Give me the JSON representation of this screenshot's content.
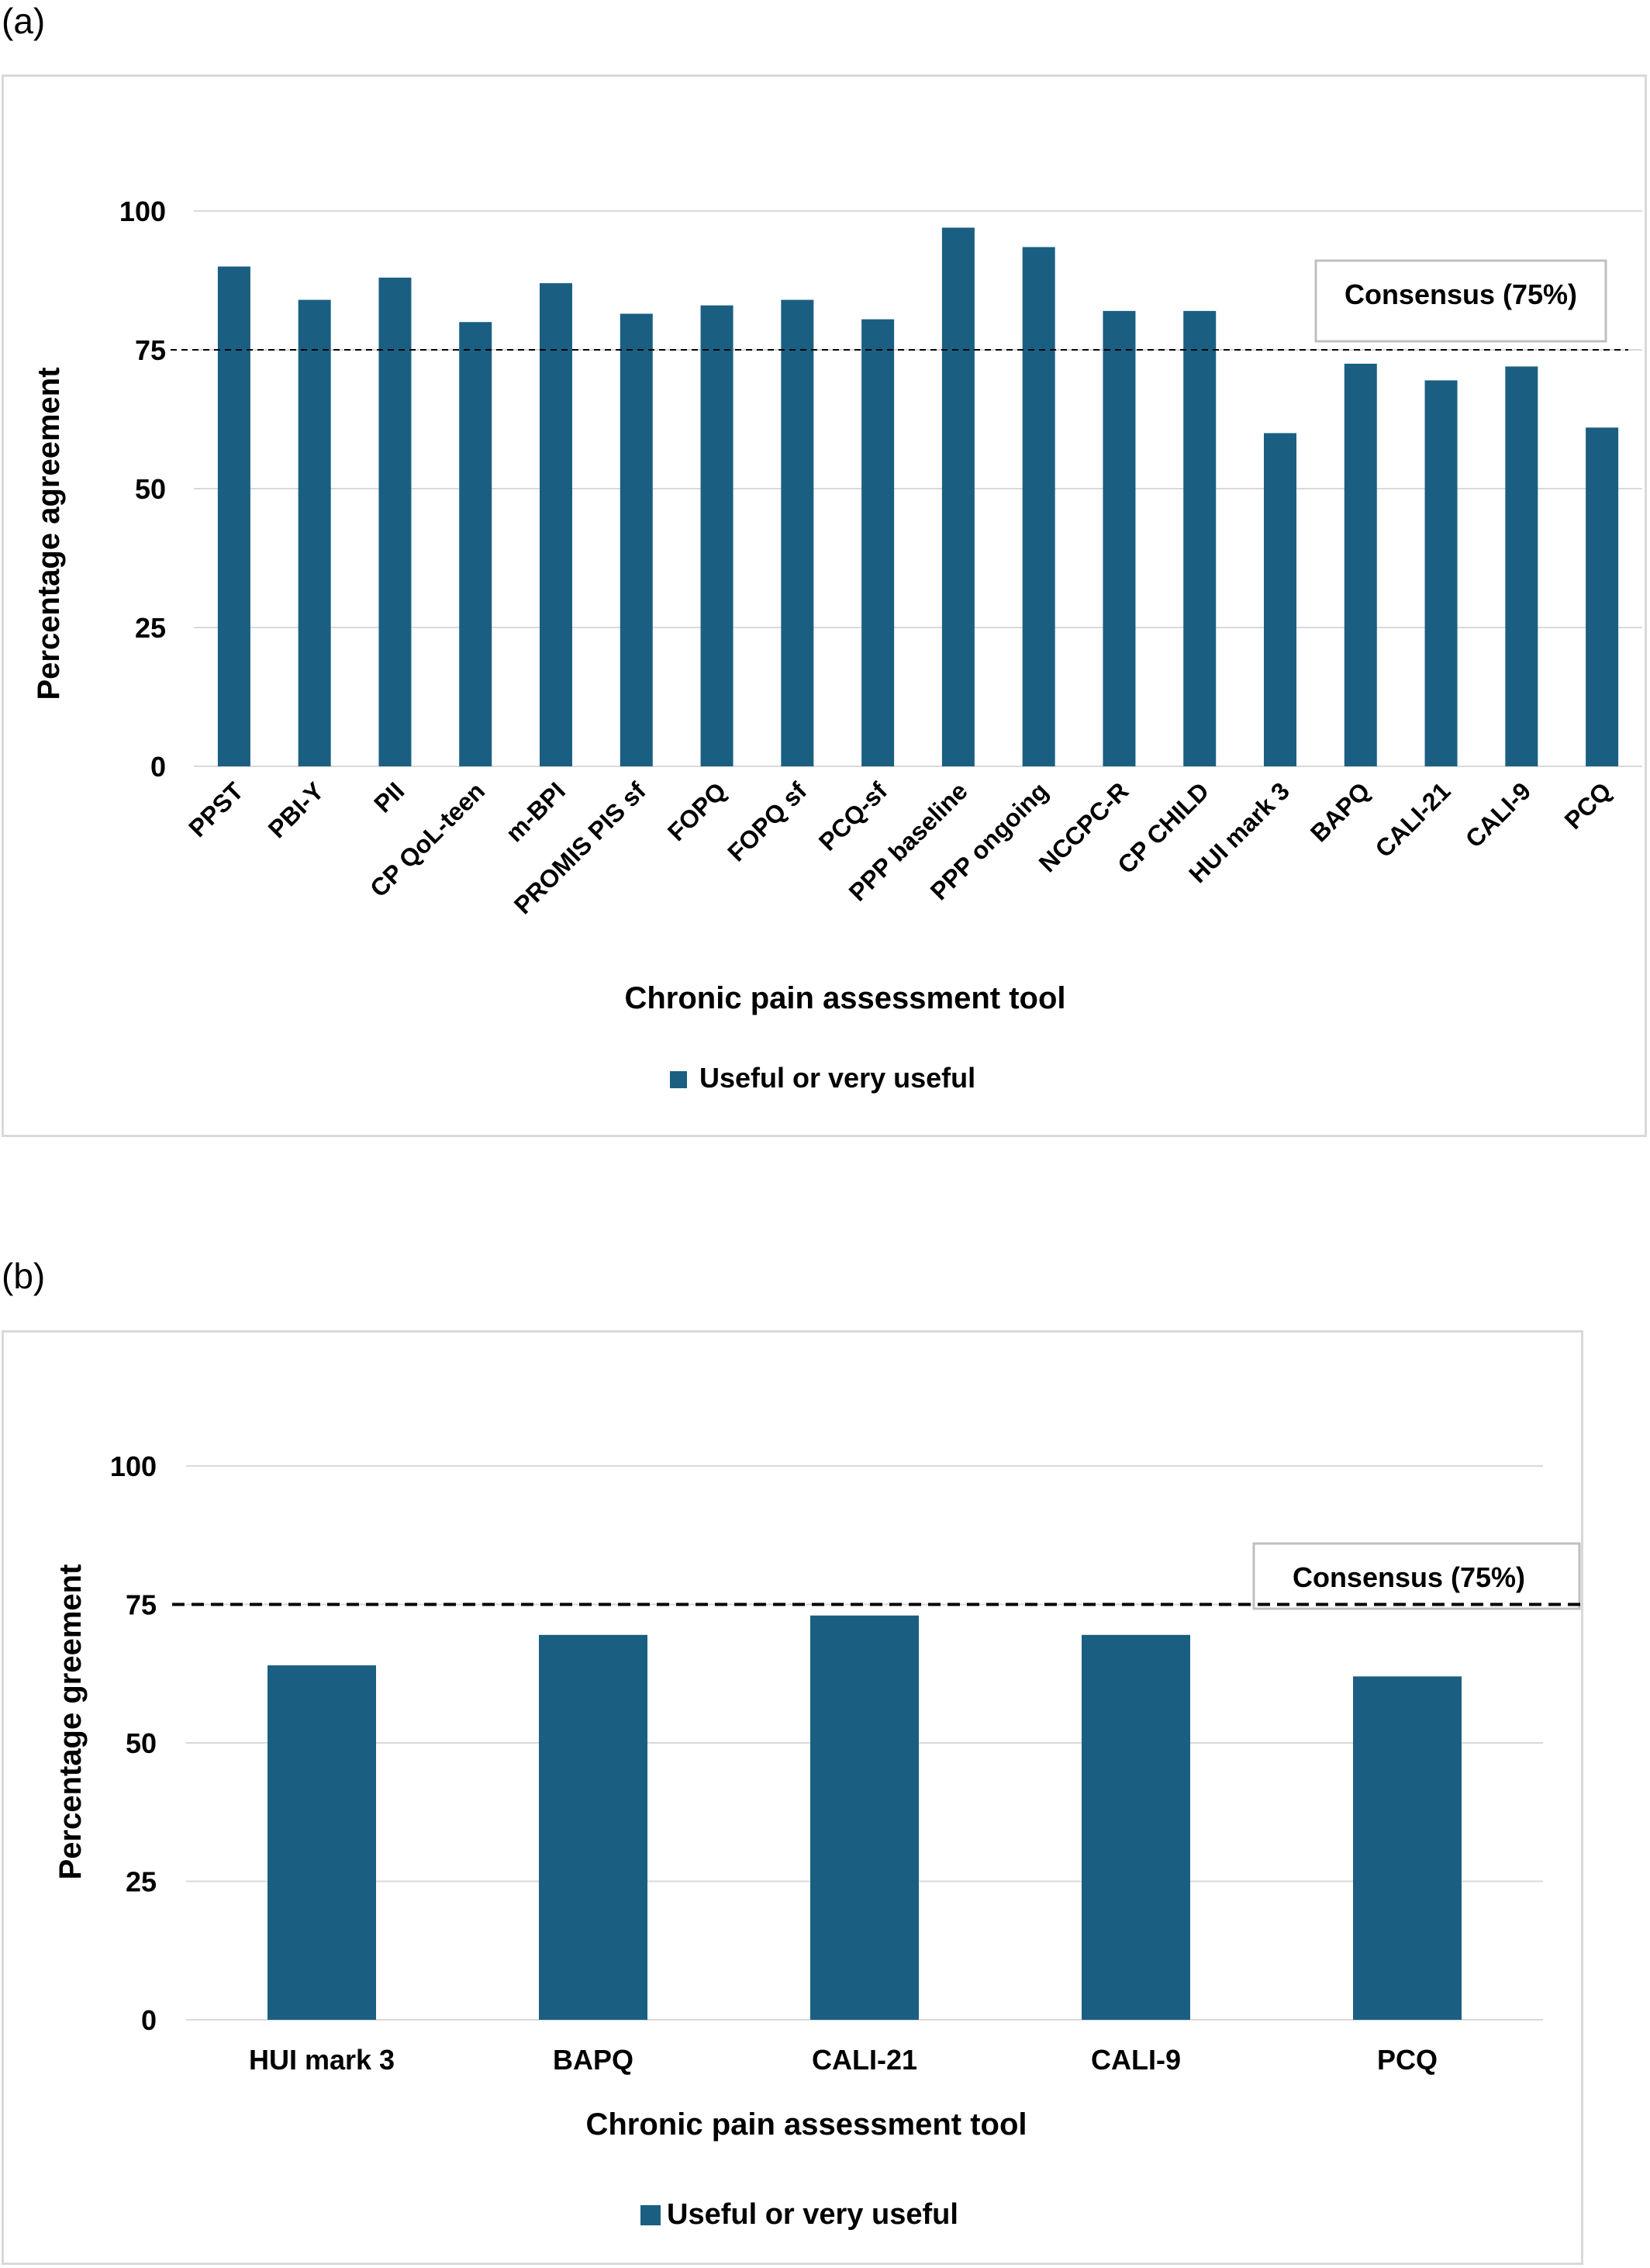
{
  "panels": {
    "a_label": "(a)",
    "b_label": "(b)"
  },
  "chart_data": [
    {
      "type": "bar",
      "title": "",
      "xlabel": "Chronic pain assessment tool",
      "ylabel": "Percentage agreement",
      "ylim": [
        0,
        100
      ],
      "yticks": [
        "0",
        "25",
        "50",
        "75",
        "100"
      ],
      "grid": true,
      "legend_position": "bottom",
      "categories": [
        "PPST",
        "PBI-Y",
        "PII",
        "CP QoL-teen",
        "m-BPI",
        "PROMIS PIS sf",
        "FOPQ",
        "FOPQ sf",
        "PCQ-sf",
        "PPP baseline",
        "PPP ongoing",
        "NCCPC-R",
        "CP CHILD",
        "HUI mark 3",
        "BAPQ",
        "CALI-21",
        "CALI-9",
        "PCQ"
      ],
      "series": [
        {
          "name": "Useful or very useful",
          "values": [
            90,
            84,
            88,
            80,
            87,
            81.5,
            83,
            84,
            80.5,
            97,
            93.5,
            82,
            82,
            60,
            72.5,
            69.5,
            72,
            61
          ],
          "color": "#1a5f82"
        }
      ],
      "reference_line": {
        "value": 75,
        "label": "Consensus (75%)",
        "style": "dashed"
      }
    },
    {
      "type": "bar",
      "title": "",
      "xlabel": "Chronic pain assessment tool",
      "ylabel": "Percentage greement",
      "ylim": [
        0,
        100
      ],
      "yticks": [
        "0",
        "25",
        "50",
        "75",
        "100"
      ],
      "grid": true,
      "legend_position": "bottom",
      "categories": [
        "HUI mark 3",
        "BAPQ",
        "CALI-21",
        "CALI-9",
        "PCQ"
      ],
      "series": [
        {
          "name": "Useful or very useful",
          "values": [
            64,
            69.5,
            73,
            69.5,
            62
          ],
          "color": "#1a5f82"
        }
      ],
      "reference_line": {
        "value": 75,
        "label": "Consensus (75%)",
        "style": "dashed"
      }
    }
  ]
}
